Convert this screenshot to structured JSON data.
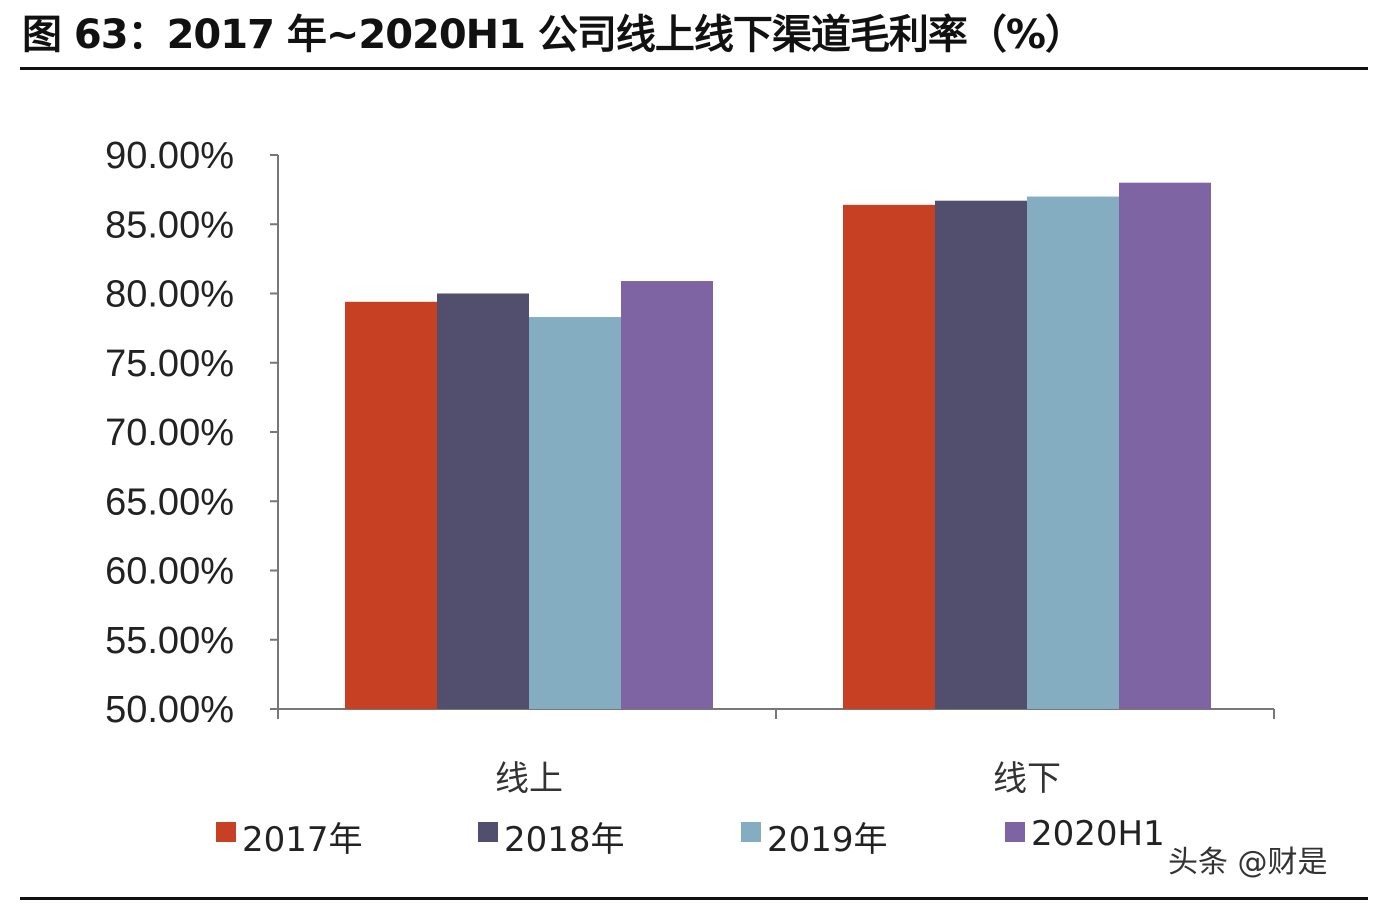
{
  "title": "图 63：2017 年~2020H1 公司线上线下渠道毛利率（%）",
  "watermark": "头条 @财是",
  "chart_data": {
    "type": "bar",
    "title": "图 63：2017 年~2020H1 公司线上线下渠道毛利率（%）",
    "xlabel": "",
    "ylabel": "",
    "categories": [
      "线上",
      "线下"
    ],
    "series": [
      {
        "name": "2017年",
        "color": "#C84023",
        "values": [
          79.4,
          86.4
        ]
      },
      {
        "name": "2018年",
        "color": "#524E6E",
        "values": [
          80.0,
          86.7
        ]
      },
      {
        "name": "2019年",
        "color": "#84ADC1",
        "values": [
          78.3,
          87.0
        ]
      },
      {
        "name": "2020H1",
        "color": "#7E64A2",
        "values": [
          80.9,
          88.0
        ]
      }
    ],
    "ylim": [
      50,
      90
    ],
    "yticks": [
      "50.00%",
      "55.00%",
      "60.00%",
      "65.00%",
      "70.00%",
      "75.00%",
      "80.00%",
      "85.00%",
      "90.00%"
    ],
    "grid": false,
    "legend": "bottom"
  }
}
